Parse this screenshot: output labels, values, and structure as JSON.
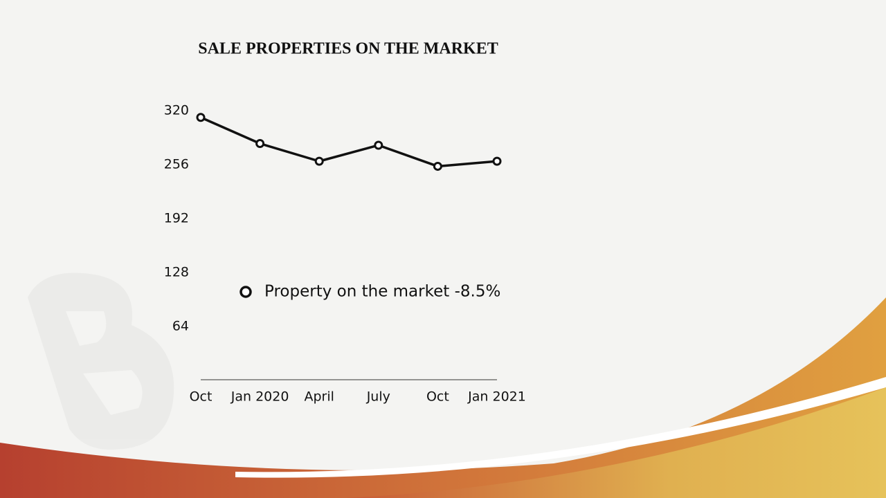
{
  "chart_data": {
    "type": "line",
    "title": "SALE PROPERTIES ON THE MARKET",
    "categories": [
      "Oct",
      "Jan 2020",
      "April",
      "July",
      "Oct",
      "Jan 2021"
    ],
    "series": [
      {
        "name": "Property on the market -8.5%",
        "color": "#111111",
        "values": [
          312,
          281,
          260,
          279,
          254,
          260
        ]
      }
    ],
    "ylim": [
      0,
      320
    ],
    "yticks": [
      64,
      128,
      192,
      256,
      320
    ],
    "grid": false
  }
}
